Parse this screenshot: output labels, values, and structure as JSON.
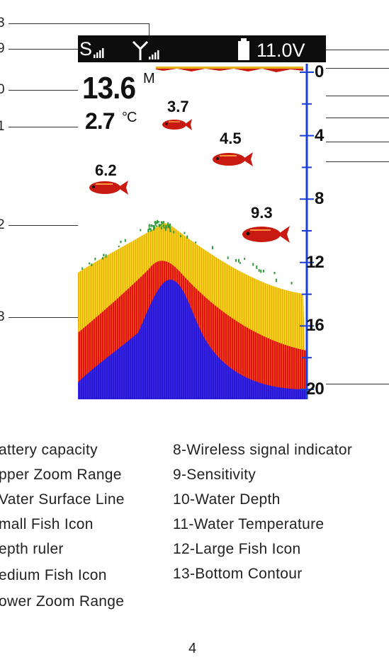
{
  "screen": {
    "status": {
      "sensitivity_glyph": "S",
      "voltage": "11.0V",
      "icons": [
        "sensitivity-bars-icon",
        "wireless-antenna-icon",
        "battery-icon"
      ]
    },
    "depth_value": "13.6",
    "depth_unit": "M",
    "temperature_value": "2.7",
    "temperature_unit": "°C",
    "fish": [
      {
        "label": "3.7",
        "size": "small"
      },
      {
        "label": "4.5",
        "size": "medium"
      },
      {
        "label": "6.2",
        "size": "medium"
      },
      {
        "label": "9.3",
        "size": "large"
      }
    ],
    "depth_ruler": [
      "0",
      "4",
      "8",
      "12",
      "16",
      "20"
    ],
    "colors": {
      "status_bar": "#0d0d0d",
      "ruler": "#1a3fd6",
      "fish_body": "#c81a10",
      "sonar_yellow": "#f2d21a",
      "sonar_red": "#e01010",
      "sonar_blue": "#2a18d0",
      "contour_green": "#2f9a3a"
    }
  },
  "callouts": {
    "left": [
      "3",
      "9",
      "0",
      "1",
      "2",
      "3"
    ],
    "page_number": "4"
  },
  "legend": {
    "left": [
      "attery capacity",
      "pper Zoom Range",
      "Vater Surface Line",
      "mall Fish Icon",
      "epth  ruler",
      "edium Fish Icon",
      "ower Zoom Range"
    ],
    "right": [
      "8-Wireless signal indicator",
      "9-Sensitivity",
      "10-Water Depth",
      "11-Water Temperature",
      "12-Large Fish Icon",
      "13-Bottom Contour"
    ]
  }
}
